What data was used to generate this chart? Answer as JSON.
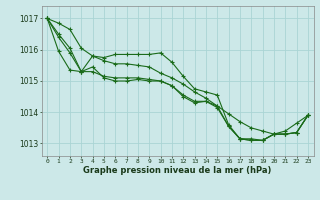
{
  "xlabel": "Graphe pression niveau de la mer (hPa)",
  "bg_color": "#cce8e8",
  "grid_color": "#aad4d4",
  "line_color": "#1a6b1a",
  "x_ticks": [
    0,
    1,
    2,
    3,
    4,
    5,
    6,
    7,
    8,
    9,
    10,
    11,
    12,
    13,
    14,
    15,
    16,
    17,
    18,
    19,
    20,
    21,
    22,
    23
  ],
  "ylim": [
    1012.6,
    1017.4
  ],
  "yticks": [
    1013,
    1014,
    1015,
    1016,
    1017
  ],
  "series": [
    [
      1017.0,
      1016.85,
      1016.65,
      1016.05,
      1015.8,
      1015.65,
      1015.55,
      1015.55,
      1015.5,
      1015.45,
      1015.25,
      1015.1,
      1014.9,
      1014.65,
      1014.45,
      1014.2,
      1013.95,
      1013.7,
      1013.5,
      1013.4,
      1013.3,
      1013.4,
      1013.65,
      1013.9
    ],
    [
      1017.0,
      1016.5,
      1016.05,
      1015.3,
      1015.8,
      1015.75,
      1015.85,
      1015.85,
      1015.85,
      1015.85,
      1015.9,
      1015.6,
      1015.15,
      1014.75,
      1014.65,
      1014.55,
      1013.6,
      1013.15,
      1013.15,
      1013.1,
      1013.3,
      1013.3,
      1013.35,
      1013.9
    ],
    [
      1017.0,
      1016.4,
      1015.9,
      1015.3,
      1015.45,
      1015.1,
      1015.0,
      1015.0,
      1015.05,
      1015.0,
      1015.0,
      1014.85,
      1014.5,
      1014.3,
      1014.35,
      1014.2,
      1013.55,
      1013.15,
      1013.1,
      1013.1,
      1013.3,
      1013.3,
      1013.35,
      1013.9
    ],
    [
      1017.0,
      1015.95,
      1015.35,
      1015.3,
      1015.3,
      1015.15,
      1015.1,
      1015.1,
      1015.1,
      1015.05,
      1015.0,
      1014.85,
      1014.55,
      1014.35,
      1014.35,
      1014.15,
      1013.55,
      1013.15,
      1013.1,
      1013.1,
      1013.3,
      1013.3,
      1013.35,
      1013.9
    ]
  ]
}
